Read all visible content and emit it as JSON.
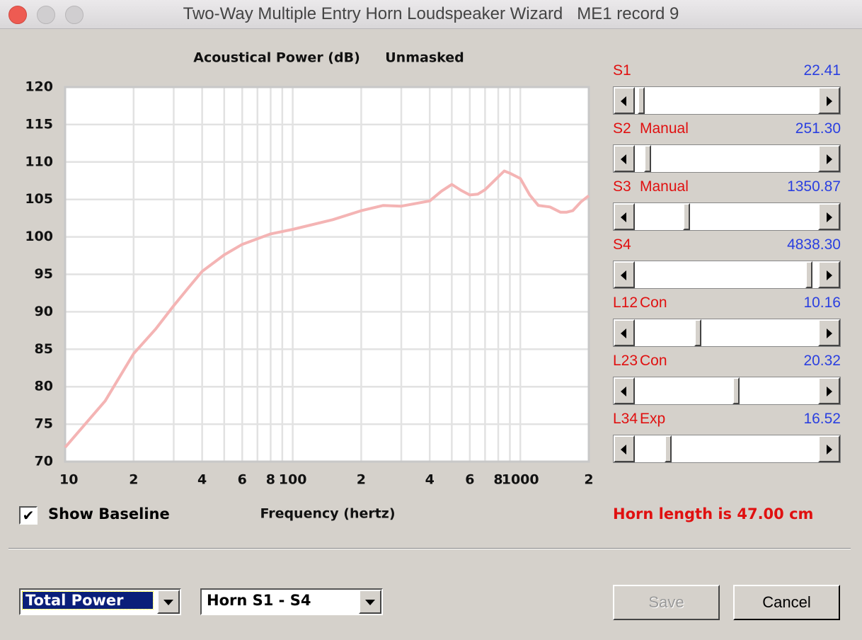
{
  "window": {
    "title": "Two-Way Multiple Entry Horn Loudspeaker Wizard   ME1 record 9"
  },
  "chart_data": {
    "type": "line",
    "title": "Acoustical Power (dB)",
    "subtitle": "Unmasked",
    "x_label": "Frequency (hertz)",
    "x_scale": "log",
    "grid": true,
    "xlim": [
      10,
      2000
    ],
    "xticks": [
      10,
      {
        "value": 20,
        "label": "2"
      },
      {
        "value": 40,
        "label": "4"
      },
      {
        "value": 60,
        "label": "6"
      },
      {
        "value": 80,
        "label": "8"
      },
      100,
      {
        "value": 200,
        "label": "2"
      },
      {
        "value": 400,
        "label": "4"
      },
      {
        "value": 600,
        "label": "6"
      },
      {
        "value": 800,
        "label": "8"
      },
      1000,
      {
        "value": 2000,
        "label": "2"
      }
    ],
    "x_minor_ticks": [
      30,
      50,
      70,
      90,
      300,
      500,
      700,
      900
    ],
    "ylim": [
      70,
      120
    ],
    "yticks": [
      70,
      75,
      80,
      85,
      90,
      95,
      100,
      105,
      110,
      115,
      120
    ],
    "x": [
      10,
      15,
      20,
      25,
      30,
      35,
      40,
      50,
      60,
      80,
      100,
      150,
      200,
      250,
      300,
      400,
      450,
      500,
      550,
      600,
      650,
      700,
      850,
      900,
      1000,
      1100,
      1200,
      1350,
      1500,
      1600,
      1700,
      1850,
      2000
    ],
    "series": [
      {
        "name": "Total Power",
        "color": "#f4b4b4",
        "values": [
          71.9,
          78.1,
          84.4,
          87.7,
          90.8,
          93.3,
          95.4,
          97.6,
          99.0,
          100.4,
          101.0,
          102.3,
          103.5,
          104.2,
          104.1,
          104.8,
          106.1,
          107.0,
          106.2,
          105.6,
          105.7,
          106.3,
          108.8,
          108.5,
          107.8,
          105.6,
          104.2,
          104.0,
          103.3,
          103.3,
          103.5,
          104.7,
          105.5
        ]
      }
    ]
  },
  "sliders": [
    {
      "name": "S1",
      "mode": "",
      "value": "22.41"
    },
    {
      "name": "S2",
      "mode": "Manual",
      "value": "251.30"
    },
    {
      "name": "S3",
      "mode": "Manual",
      "value": "1350.87"
    },
    {
      "name": "S4",
      "mode": "",
      "value": "4838.30"
    },
    {
      "name": "L12",
      "mode": "Con",
      "value": "10.16"
    },
    {
      "name": "L23",
      "mode": "Con",
      "value": "20.32"
    },
    {
      "name": "L34",
      "mode": "Exp",
      "value": "16.52"
    }
  ],
  "checkbox": {
    "label": "Show Baseline",
    "checked": true
  },
  "status": "Horn length is 47.00 cm",
  "dropdowns": [
    "Total Power",
    "Horn S1 - S4"
  ],
  "buttons": [
    "Save",
    "Cancel"
  ]
}
